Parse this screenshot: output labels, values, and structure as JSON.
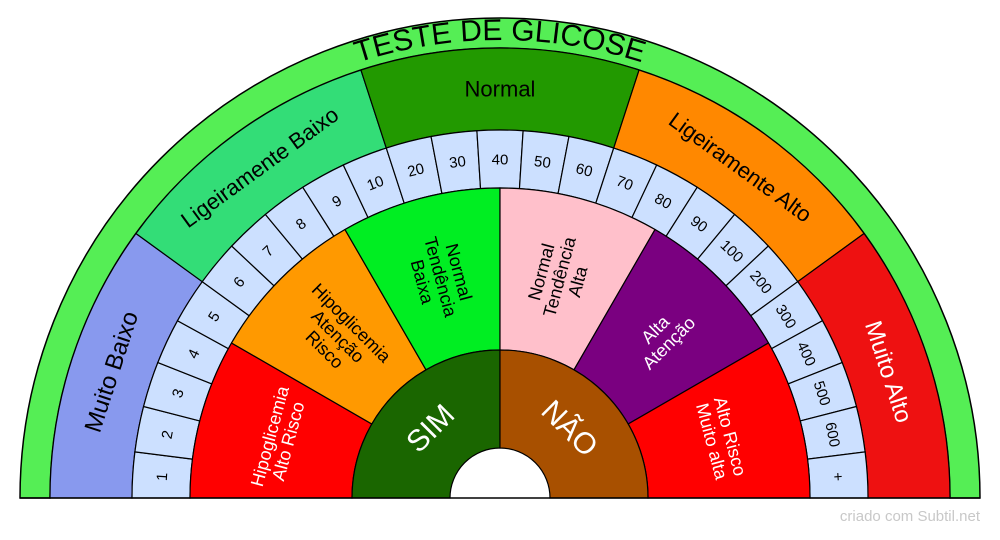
{
  "title": "TESTE DE GLICOSE",
  "credit": "criado com Subtil.net",
  "outline_color": "#000000",
  "outer_background_color": "#55ee55",
  "categories": [
    {
      "label": "Muito Baixo",
      "color": "#8899ee",
      "text_color": "#000000"
    },
    {
      "label": "Ligeiramente Baixo",
      "color": "#33dd77",
      "text_color": "#000000"
    },
    {
      "label": "Normal",
      "color": "#229900",
      "text_color": "#000000"
    },
    {
      "label": "Ligeiramente Alto",
      "color": "#ff8800",
      "text_color": "#000000"
    },
    {
      "label": "Muito Alto",
      "color": "#ee1111",
      "text_color": "#ffffff"
    }
  ],
  "scale": {
    "color": "#cce0ff",
    "values": [
      "1",
      "2",
      "3",
      "4",
      "5",
      "6",
      "7",
      "8",
      "9",
      "10",
      "20",
      "30",
      "40",
      "50",
      "60",
      "70",
      "80",
      "90",
      "100",
      "200",
      "300",
      "400",
      "500",
      "600",
      "+"
    ]
  },
  "zones": [
    {
      "lines": [
        "Hipoglicemia",
        "Alto Risco"
      ],
      "color": "#ff0000",
      "text_color": "#ffffff"
    },
    {
      "lines": [
        "Hipoglicemia",
        "Atenção",
        "Risco"
      ],
      "color": "#ff9900",
      "text_color": "#000000"
    },
    {
      "lines": [
        "Normal",
        "Tendência",
        "Baixa"
      ],
      "color": "#00ee22",
      "text_color": "#000000"
    },
    {
      "lines": [
        "Normal",
        "Tendência",
        "Alta"
      ],
      "color": "#ffc0cb",
      "text_color": "#000000"
    },
    {
      "lines": [
        "Alta",
        "Atenção"
      ],
      "color": "#7a0080",
      "text_color": "#ffffff"
    },
    {
      "lines": [
        "Alto Risco",
        "Muito alta"
      ],
      "color": "#ff0000",
      "text_color": "#ffffff"
    }
  ],
  "answers": [
    {
      "label": "SIM",
      "color": "#1a6600",
      "text_color": "#ffffff"
    },
    {
      "label": "NÃO",
      "color": "#a85000",
      "text_color": "#ffffff"
    }
  ]
}
